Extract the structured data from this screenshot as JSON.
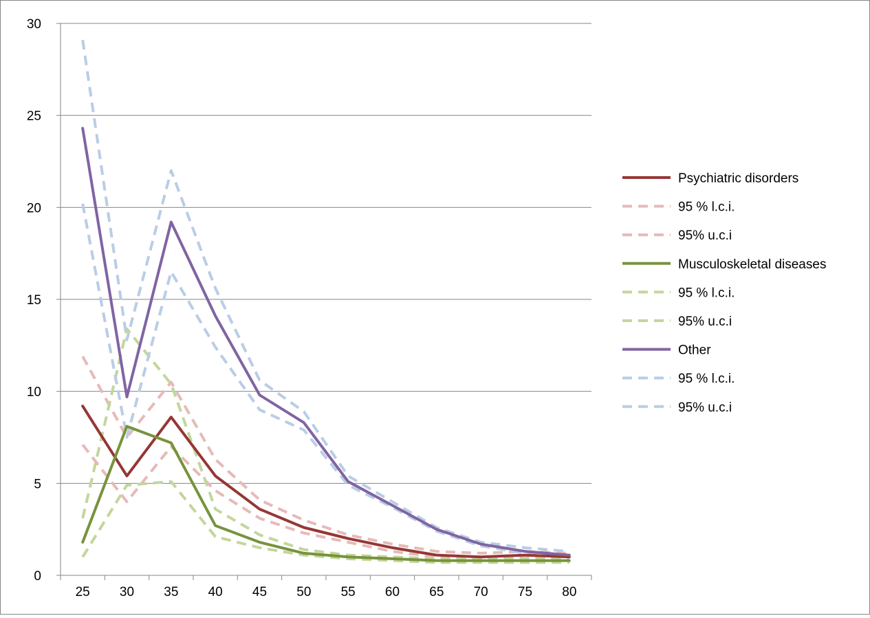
{
  "chart_data": {
    "type": "line",
    "title": "",
    "xlabel": "",
    "ylabel": "",
    "x": [
      25,
      30,
      35,
      40,
      45,
      50,
      55,
      60,
      65,
      70,
      75,
      80
    ],
    "ylim": [
      0,
      30
    ],
    "y_ticks": [
      0,
      5,
      10,
      15,
      20,
      25,
      30
    ],
    "grid": "horizontal major gridlines",
    "legend_position": "right",
    "series": [
      {
        "name": "Psychiatric disorders",
        "color": "#953735",
        "dashed": false,
        "values": [
          9.2,
          5.4,
          8.6,
          5.4,
          3.6,
          2.6,
          2.0,
          1.5,
          1.1,
          1.0,
          1.1,
          1.0
        ]
      },
      {
        "name": "95 % l.c.i.",
        "color": "#E6B9B8",
        "dashed": true,
        "values": [
          7.1,
          4.0,
          7.0,
          4.6,
          3.1,
          2.3,
          1.8,
          1.3,
          1.0,
          0.9,
          1.0,
          0.9
        ]
      },
      {
        "name": "95% u.c.i",
        "color": "#E6B9B8",
        "dashed": true,
        "values": [
          11.9,
          7.5,
          10.5,
          6.3,
          4.1,
          3.0,
          2.2,
          1.7,
          1.3,
          1.2,
          1.3,
          1.2
        ]
      },
      {
        "name": "Musculoskeletal diseases",
        "color": "#77933C",
        "dashed": false,
        "values": [
          1.8,
          8.1,
          7.2,
          2.7,
          1.8,
          1.2,
          1.0,
          0.9,
          0.8,
          0.8,
          0.8,
          0.8
        ]
      },
      {
        "name": "95 % l.c.i.",
        "color": "#C3D69B",
        "dashed": true,
        "values": [
          1.0,
          4.9,
          5.1,
          2.1,
          1.5,
          1.1,
          0.9,
          0.8,
          0.7,
          0.7,
          0.7,
          0.7
        ]
      },
      {
        "name": "95% u.c.i",
        "color": "#C3D69B",
        "dashed": true,
        "values": [
          3.1,
          13.4,
          10.4,
          3.6,
          2.2,
          1.4,
          1.1,
          1.0,
          0.9,
          0.9,
          0.9,
          0.9
        ]
      },
      {
        "name": "Other",
        "color": "#8064A2",
        "dashed": false,
        "values": [
          24.3,
          9.7,
          19.2,
          14.1,
          9.8,
          8.3,
          5.1,
          3.8,
          2.5,
          1.7,
          1.3,
          1.1
        ]
      },
      {
        "name": "95 % l.c.i.",
        "color": "#B9CDE5",
        "dashed": true,
        "values": [
          20.2,
          7.5,
          16.5,
          12.4,
          9.0,
          7.9,
          4.9,
          3.7,
          2.4,
          1.6,
          1.2,
          1.0
        ]
      },
      {
        "name": "95% u.c.i",
        "color": "#B9CDE5",
        "dashed": true,
        "values": [
          29.1,
          12.8,
          22.0,
          15.6,
          10.6,
          8.9,
          5.4,
          4.0,
          2.6,
          1.8,
          1.5,
          1.3
        ]
      }
    ]
  }
}
